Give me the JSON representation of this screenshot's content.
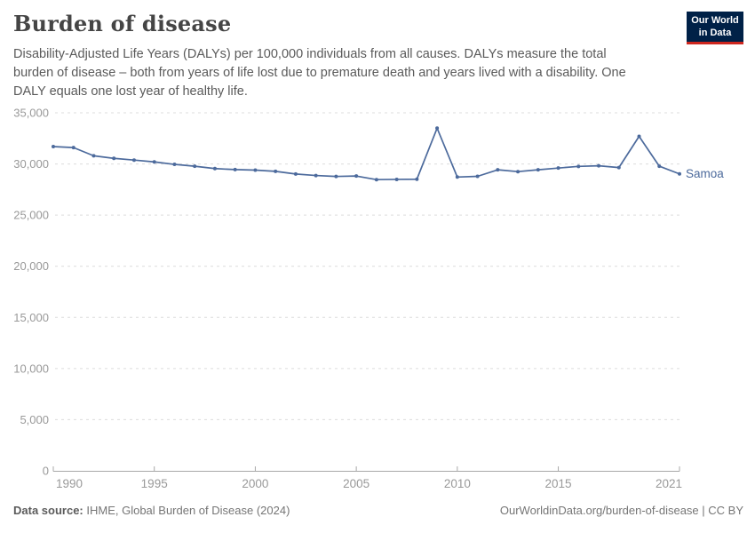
{
  "header": {
    "title": "Burden of disease",
    "subtitle_lines": [
      "Disability-Adjusted Life Years (DALYs) per 100,000 individuals from all causes. DALYs measure the total",
      "burden of disease – both from years of life lost due to premature death and years lived with a disability. One",
      "DALY equals one lost year of healthy life."
    ],
    "logo": {
      "line1": "Our World",
      "line2": "in Data",
      "bg_color": "#002147",
      "accent_color": "#CE261E"
    }
  },
  "footer": {
    "source_label": "Data source:",
    "source_value": " IHME, Global Burden of Disease (2024)",
    "url": "OurWorldinData.org/burden-of-disease",
    "separator": " | ",
    "license": "CC BY"
  },
  "chart_data": {
    "type": "line",
    "title": "Burden of disease",
    "ylabel": "",
    "xlabel": "",
    "xlim": [
      1990,
      2021
    ],
    "ylim": [
      0,
      35000
    ],
    "grid": "dashed-horizontal",
    "legend_position": "end-of-line-label",
    "xticks": [
      1990,
      1995,
      2000,
      2005,
      2010,
      2015,
      2021
    ],
    "yticks": [
      0,
      5000,
      10000,
      15000,
      20000,
      25000,
      30000,
      35000
    ],
    "x": [
      1990,
      1991,
      1992,
      1993,
      1994,
      1995,
      1996,
      1997,
      1998,
      1999,
      2000,
      2001,
      2002,
      2003,
      2004,
      2005,
      2006,
      2007,
      2008,
      2009,
      2010,
      2011,
      2012,
      2013,
      2014,
      2015,
      2016,
      2017,
      2018,
      2019,
      2020,
      2021
    ],
    "series": [
      {
        "name": "Samoa",
        "color": "#4C6A9C",
        "values": [
          31700,
          31600,
          30800,
          30550,
          30380,
          30200,
          29960,
          29780,
          29550,
          29450,
          29400,
          29280,
          29020,
          28870,
          28780,
          28820,
          28470,
          28490,
          28510,
          33500,
          28720,
          28790,
          29430,
          29250,
          29430,
          29600,
          29760,
          29820,
          29650,
          32700,
          29780,
          29030
        ]
      }
    ]
  }
}
